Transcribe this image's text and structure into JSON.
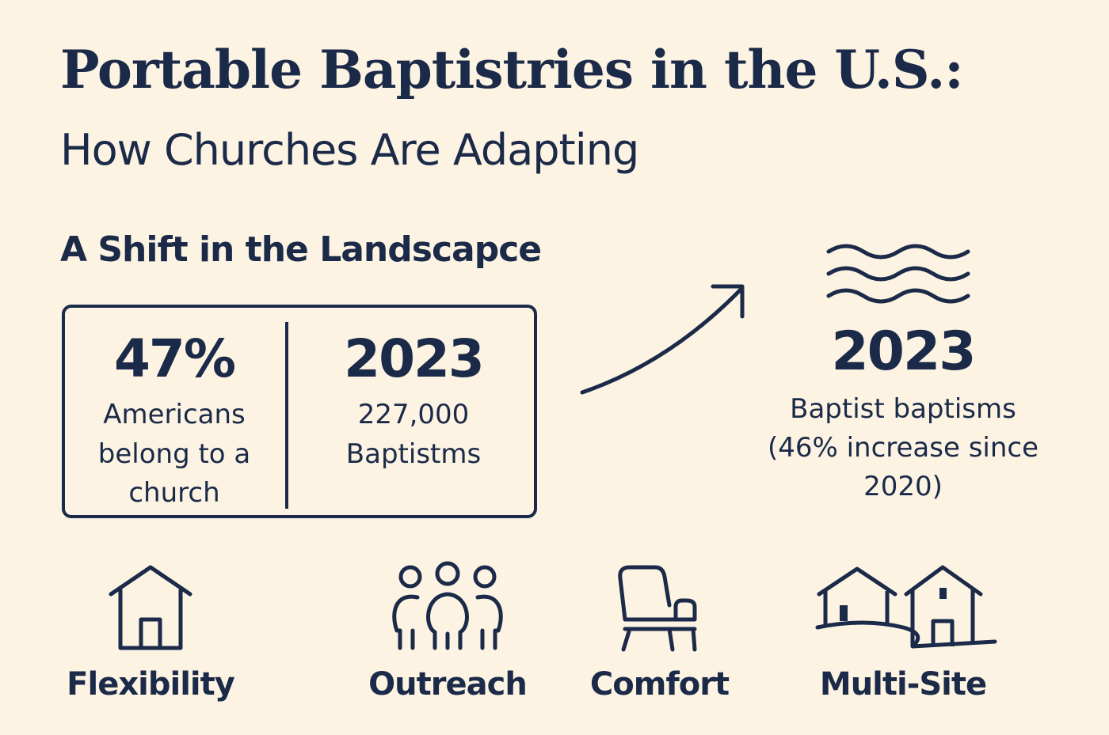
{
  "title": "Portable Baptistries in the U.S.:",
  "subtitle": "How Churches Are Adapting",
  "section_heading": "A Shift in the Landscapce",
  "stats": [
    {
      "value": "47%",
      "description": "Americans belong to a church"
    },
    {
      "value": "2023",
      "description": "227,000 Baptistms"
    }
  ],
  "highlight": {
    "value": "2023",
    "description": "Baptist baptisms (46% increase since 2020)"
  },
  "features": [
    {
      "label": "Flexibility",
      "icon": "house-icon"
    },
    {
      "label": "Outreach",
      "icon": "people-icon"
    },
    {
      "label": "Comfort",
      "icon": "chair-icon"
    },
    {
      "label": "Multi-Site",
      "icon": "two-houses-icon"
    }
  ],
  "colors": {
    "background": "#fcf3e3",
    "ink": "#1b2a48"
  }
}
